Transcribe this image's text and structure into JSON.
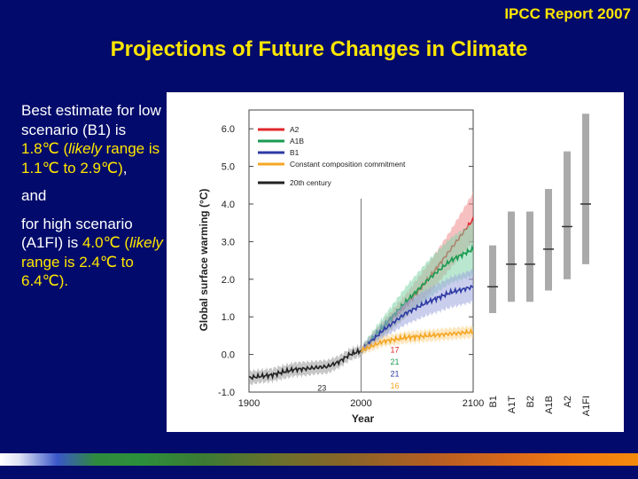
{
  "header": {
    "report": "IPCC Report 2007",
    "title": "Projections of Future Changes in Climate"
  },
  "summary": {
    "p1_a": "Best estimate for low scenario (B1) is ",
    "p1_val": "1.8℃",
    "p1_b": " (",
    "p1_likely": "likely",
    "p1_range": " range is 1.1℃ to 2.9℃)",
    "p1_end": ",",
    "and": "and",
    "p2_a": "for high scenario (A1FI) is ",
    "p2_val": "4.0℃",
    "p2_b": " (",
    "p2_likely": "likely",
    "p2_range": " range is 2.4℃ to 6.4℃).",
    "highlight_color": "#ffe600"
  },
  "chart_data": {
    "type": "line",
    "title": "",
    "xlabel": "Year",
    "ylabel": "Global surface warming (°C)",
    "xlim": [
      1900,
      2100
    ],
    "ylim": [
      -1.0,
      6.5
    ],
    "xticks": [
      "1900",
      "2000",
      "2100"
    ],
    "yticks": [
      "-1.0",
      "0.0",
      "1.0",
      "2.0",
      "3.0",
      "4.0",
      "5.0",
      "6.0"
    ],
    "divider_year": 2000,
    "legend": [
      {
        "name": "A2",
        "color": "#e0262b"
      },
      {
        "name": "A1B",
        "color": "#1a9a50"
      },
      {
        "name": "B1",
        "color": "#2e3aa4"
      },
      {
        "name": "Constant composition commitment",
        "color": "#f5a623"
      },
      {
        "name": "20th century",
        "color": "#222222"
      }
    ],
    "legend_position": "top-left",
    "series": [
      {
        "name": "20th century",
        "color": "#222222",
        "band": "#999999",
        "x": [
          1900,
          1910,
          1920,
          1930,
          1940,
          1950,
          1960,
          1970,
          1980,
          1990,
          2000
        ],
        "y": [
          -0.62,
          -0.58,
          -0.55,
          -0.47,
          -0.4,
          -0.38,
          -0.35,
          -0.32,
          -0.2,
          0.0,
          0.1
        ],
        "lo": [
          -0.8,
          -0.75,
          -0.72,
          -0.65,
          -0.58,
          -0.56,
          -0.52,
          -0.5,
          -0.36,
          -0.15,
          -0.05
        ],
        "hi": [
          -0.44,
          -0.41,
          -0.38,
          -0.3,
          -0.22,
          -0.2,
          -0.18,
          -0.15,
          -0.04,
          0.15,
          0.25
        ]
      },
      {
        "name": "A2",
        "color": "#e0262b",
        "band": "#f08c8c",
        "x": [
          2000,
          2020,
          2040,
          2060,
          2080,
          2100
        ],
        "y": [
          0.1,
          0.7,
          1.3,
          2.0,
          2.8,
          3.6
        ],
        "lo": [
          0.0,
          0.5,
          1.0,
          1.6,
          2.3,
          3.0
        ],
        "hi": [
          0.2,
          0.9,
          1.6,
          2.4,
          3.3,
          4.3
        ]
      },
      {
        "name": "A1B",
        "color": "#1a9a50",
        "band": "#7fd3a8",
        "x": [
          2000,
          2020,
          2040,
          2060,
          2080,
          2100
        ],
        "y": [
          0.1,
          0.75,
          1.4,
          2.0,
          2.5,
          2.8
        ],
        "lo": [
          0.0,
          0.5,
          1.0,
          1.5,
          1.9,
          2.1
        ],
        "hi": [
          0.2,
          1.0,
          1.8,
          2.5,
          3.1,
          3.5
        ]
      },
      {
        "name": "B1",
        "color": "#2e3aa4",
        "band": "#9ea6de",
        "x": [
          2000,
          2020,
          2040,
          2060,
          2080,
          2100
        ],
        "y": [
          0.1,
          0.65,
          1.1,
          1.4,
          1.65,
          1.8
        ],
        "lo": [
          0.0,
          0.45,
          0.8,
          1.05,
          1.25,
          1.4
        ],
        "hi": [
          0.2,
          0.85,
          1.4,
          1.75,
          2.05,
          2.25
        ]
      },
      {
        "name": "Constant composition commitment",
        "color": "#f5a623",
        "band": "#fbd38d",
        "x": [
          2000,
          2020,
          2040,
          2060,
          2080,
          2100
        ],
        "y": [
          0.1,
          0.35,
          0.45,
          0.5,
          0.55,
          0.6
        ],
        "lo": [
          0.0,
          0.22,
          0.3,
          0.35,
          0.4,
          0.45
        ],
        "hi": [
          0.2,
          0.48,
          0.6,
          0.65,
          0.7,
          0.75
        ]
      }
    ],
    "model_counts": [
      {
        "label": "17",
        "color": "#e0262b"
      },
      {
        "label": "21",
        "color": "#1a9a50"
      },
      {
        "label": "21",
        "color": "#2e3aa4"
      },
      {
        "label": "16",
        "color": "#f5a623"
      },
      {
        "label": "23",
        "color": "#222222"
      }
    ],
    "scenario_ranges": [
      {
        "name": "B1",
        "best": 1.8,
        "low": 1.1,
        "high": 2.9
      },
      {
        "name": "A1T",
        "best": 2.4,
        "low": 1.4,
        "high": 3.8
      },
      {
        "name": "B2",
        "best": 2.4,
        "low": 1.4,
        "high": 3.8
      },
      {
        "name": "A1B",
        "best": 2.8,
        "low": 1.7,
        "high": 4.4
      },
      {
        "name": "A2",
        "best": 3.4,
        "low": 2.0,
        "high": 5.4
      },
      {
        "name": "A1FI",
        "best": 4.0,
        "low": 2.4,
        "high": 6.4
      }
    ]
  }
}
